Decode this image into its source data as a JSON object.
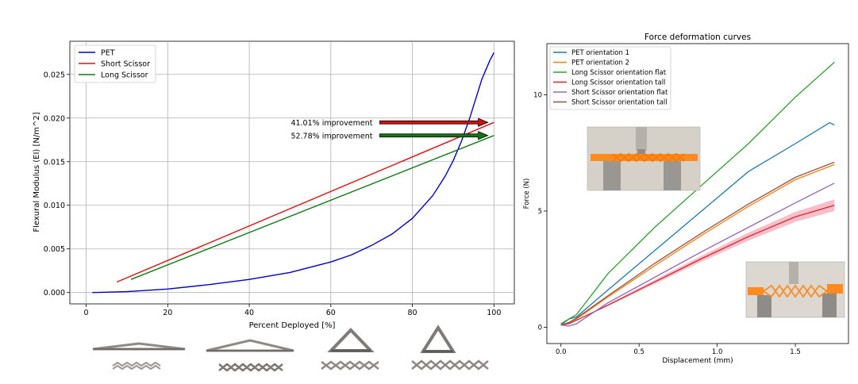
{
  "chart_data": [
    {
      "type": "line",
      "title": "",
      "xlabel": "Percent Deployed [%]",
      "ylabel": "Flexural Modulus (EI) [N/m^2]",
      "xlim": [
        -4,
        105
      ],
      "ylim": [
        -0.0013,
        0.0288
      ],
      "xticks": [
        0,
        20,
        40,
        60,
        80,
        100
      ],
      "xtick_labels": [
        "0",
        "20",
        "40",
        "60",
        "80",
        "100"
      ],
      "yticks": [
        0.0,
        0.005,
        0.01,
        0.015,
        0.02,
        0.025
      ],
      "ytick_labels": [
        "0.000",
        "0.005",
        "0.010",
        "0.015",
        "0.020",
        "0.025"
      ],
      "grid": true,
      "legend_position": "top-left",
      "series": [
        {
          "name": "PET",
          "color": "#0000cc",
          "x": [
            1.5,
            10,
            20,
            30,
            40,
            50,
            60,
            65,
            70,
            75,
            80,
            85,
            88,
            90,
            92,
            94,
            95,
            96,
            97,
            98,
            99,
            100
          ],
          "y": [
            0.0,
            0.0001,
            0.0004,
            0.0009,
            0.0015,
            0.0023,
            0.0035,
            0.0043,
            0.0054,
            0.0067,
            0.0085,
            0.0111,
            0.0133,
            0.0151,
            0.0173,
            0.0199,
            0.0214,
            0.0229,
            0.0244,
            0.0255,
            0.0266,
            0.0275
          ]
        },
        {
          "name": "Short Scissor",
          "color": "#dd1111",
          "x": [
            7.5,
            100
          ],
          "y": [
            0.0012,
            0.0195
          ]
        },
        {
          "name": "Long Scissor",
          "color": "#127a12",
          "x": [
            11,
            100
          ],
          "y": [
            0.0015,
            0.018
          ]
        }
      ],
      "annotations": [
        {
          "text": "41.01% improvement",
          "arrow_color": "#cc1111",
          "arrow_from": [
            72,
            0.0195
          ],
          "arrow_to": [
            98.5,
            0.0195
          ]
        },
        {
          "text": "52.78% improvement",
          "arrow_color": "#117711",
          "arrow_from": [
            72,
            0.018
          ],
          "arrow_to": [
            98.5,
            0.018
          ]
        }
      ]
    },
    {
      "type": "line",
      "title": "Force deformation curves",
      "xlabel": "Displacement (mm)",
      "ylabel": "Force (N)",
      "xlim": [
        -0.09,
        1.84
      ],
      "ylim": [
        -0.7,
        12.2
      ],
      "xticks": [
        0.0,
        0.5,
        1.0,
        1.5
      ],
      "xtick_labels": [
        "0.0",
        "0.5",
        "1.0",
        "1.5"
      ],
      "yticks": [
        0,
        5,
        10
      ],
      "ytick_labels": [
        "0",
        "5",
        "10"
      ],
      "grid": false,
      "legend_position": "top-left",
      "series": [
        {
          "name": "PET orientation 1",
          "color": "#1f77b4",
          "x": [
            0.0,
            0.05,
            0.1,
            0.3,
            0.6,
            0.9,
            1.2,
            1.5,
            1.72,
            1.75
          ],
          "y": [
            0.1,
            0.35,
            0.45,
            1.6,
            3.3,
            5.0,
            6.7,
            7.9,
            8.8,
            8.7
          ]
        },
        {
          "name": "PET orientation 2",
          "color": "#ff7f0e",
          "x": [
            0.0,
            0.05,
            0.1,
            0.3,
            0.6,
            0.9,
            1.2,
            1.5,
            1.75
          ],
          "y": [
            0.1,
            0.2,
            0.35,
            1.3,
            2.65,
            3.95,
            5.2,
            6.35,
            7.0
          ]
        },
        {
          "name": "Long Scissor orientation flat",
          "color": "#2ca02c",
          "x": [
            0.0,
            0.05,
            0.1,
            0.3,
            0.6,
            0.9,
            1.2,
            1.5,
            1.75
          ],
          "y": [
            0.15,
            0.35,
            0.55,
            2.3,
            4.3,
            6.1,
            7.9,
            9.9,
            11.4
          ]
        },
        {
          "name": "Long Scissor orientation tall",
          "color": "#d62728",
          "x": [
            0.0,
            0.05,
            0.1,
            0.3,
            0.6,
            0.9,
            1.2,
            1.5,
            1.75
          ],
          "y": [
            0.1,
            0.15,
            0.3,
            0.95,
            1.95,
            2.95,
            3.9,
            4.75,
            5.25
          ]
        },
        {
          "name": "Short Scissor orientation flat",
          "color": "#9467bd",
          "x": [
            0.0,
            0.05,
            0.1,
            0.3,
            0.6,
            0.9,
            1.2,
            1.5,
            1.75
          ],
          "y": [
            0.1,
            0.05,
            0.15,
            1.05,
            2.15,
            3.25,
            4.3,
            5.35,
            6.2
          ]
        },
        {
          "name": "Short Scissor orientation tall",
          "color": "#8c564b",
          "x": [
            0.0,
            0.05,
            0.1,
            0.3,
            0.6,
            0.9,
            1.2,
            1.5,
            1.75
          ],
          "y": [
            0.1,
            0.2,
            0.4,
            1.35,
            2.75,
            4.05,
            5.3,
            6.45,
            7.1
          ]
        }
      ],
      "band": {
        "series": "Long Scissor orientation tall",
        "color": "#f08aa0",
        "spread": 0.25
      }
    }
  ],
  "legend_left": {
    "items": [
      "PET",
      "Short Scissor",
      "Long Scissor"
    ]
  },
  "legend_right": {
    "items": [
      "PET orientation 1",
      "PET orientation 2",
      "Long Scissor orientation flat",
      "Long Scissor orientation tall",
      "Short Scissor orientation flat",
      "Short Scissor orientation tall"
    ]
  },
  "icons": {
    "scissor_photos": [
      "scissor-deployed-0-photo",
      "scissor-deployed-20-photo",
      "scissor-deployed-60-photo",
      "scissor-deployed-100-photo"
    ],
    "test_photos": [
      "flat-orientation-test-photo",
      "tall-orientation-test-photo"
    ]
  },
  "colors": {
    "orange_specimen": "#ff8a1e",
    "metal_gray": "#8f8c88",
    "photo_bg": "#d9d4cc"
  }
}
